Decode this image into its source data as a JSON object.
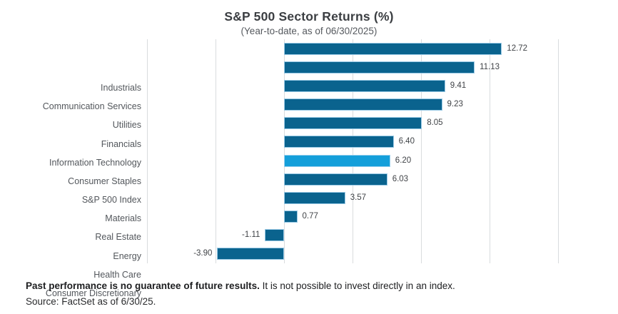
{
  "chart_data": {
    "type": "bar",
    "orientation": "horizontal",
    "title": "S&P 500 Sector Returns (%)",
    "subtitle": "(Year-to-date, as of 06/30/2025)",
    "categories": [
      "Industrials",
      "Communication Services",
      "Utilities",
      "Financials",
      "Information Technology",
      "Consumer Staples",
      "S&P 500 Index",
      "Materials",
      "Real Estate",
      "Energy",
      "Health Care",
      "Consumer Discretionary"
    ],
    "values": [
      12.72,
      11.13,
      9.41,
      9.23,
      8.05,
      6.4,
      6.2,
      6.03,
      3.57,
      0.77,
      -1.11,
      -3.9
    ],
    "value_labels": [
      "12.72",
      "11.13",
      "9.41",
      "9.23",
      "8.05",
      "6.40",
      "6.20",
      "6.03",
      "3.57",
      "0.77",
      "-1.11",
      "-3.90"
    ],
    "highlight_index": 6,
    "bar_color": "#0a638e",
    "highlight_color": "#149fda",
    "xlim": [
      -8,
      16.75
    ],
    "gridlines": [
      -8,
      -4,
      0,
      4,
      8,
      12,
      16
    ],
    "grid": true,
    "legend": false,
    "xlabel": "",
    "ylabel": ""
  },
  "footer": {
    "disclaimer_bold": "Past performance is no guarantee of future results.",
    "disclaimer_rest": " It is not possible to invest directly in an index.",
    "source": "Source: FactSet as of 6/30/25."
  }
}
